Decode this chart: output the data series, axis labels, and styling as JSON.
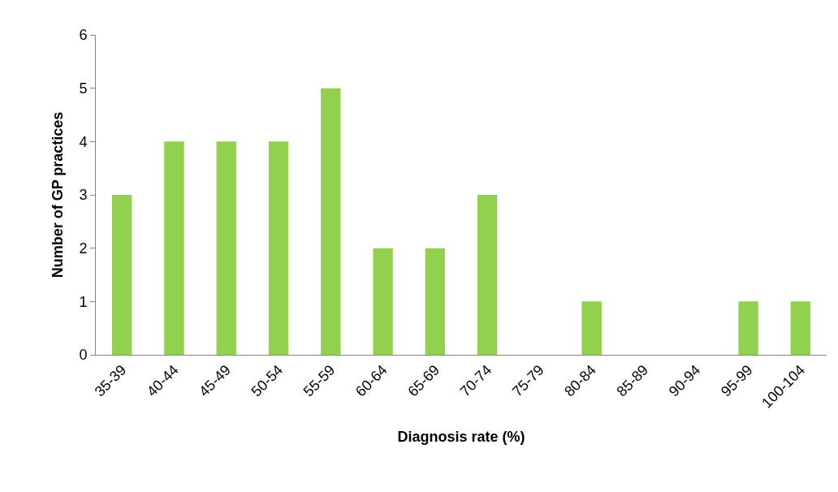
{
  "chart_data": {
    "type": "bar",
    "xlabel": "Diagnosis rate (%)",
    "ylabel": "Number of GP practices",
    "categories": [
      "35-39",
      "40-44",
      "45-49",
      "50-54",
      "55-59",
      "60-64",
      "65-69",
      "70-74",
      "75-79",
      "80-84",
      "85-89",
      "90-94",
      "95-99",
      "100-104"
    ],
    "values": [
      3,
      4,
      4,
      4,
      5,
      2,
      2,
      3,
      0,
      1,
      0,
      0,
      1,
      1
    ],
    "color": "#92d050",
    "ylim": [
      0,
      6
    ],
    "yticks": [
      0,
      1,
      2,
      3,
      4,
      5,
      6
    ]
  }
}
